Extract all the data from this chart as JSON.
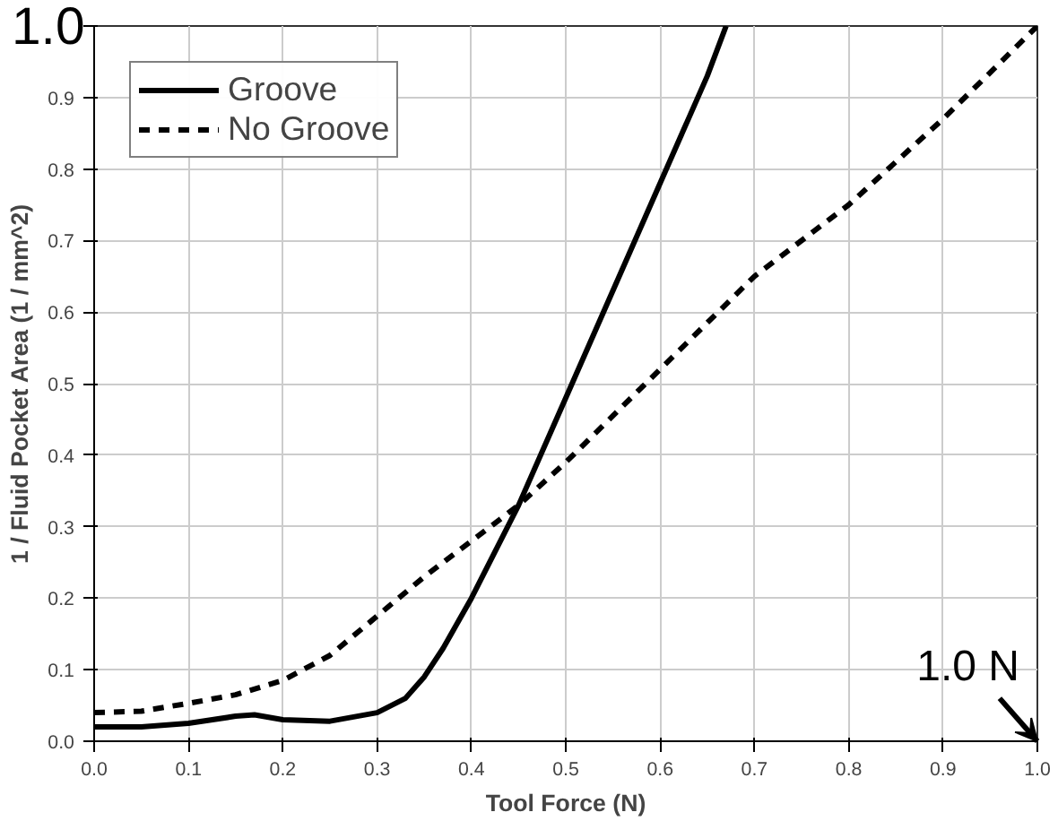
{
  "chart_data": {
    "type": "line",
    "xlabel": "Tool Force (N)",
    "ylabel": "1 / Fluid Pocket Area (1 / mm^2)",
    "xlim": [
      0,
      1.0
    ],
    "ylim": [
      0,
      1.0
    ],
    "xticks": [
      {
        "value": 0,
        "label": "0.0"
      },
      {
        "value": 0.1,
        "label": "0.1"
      },
      {
        "value": 0.2,
        "label": "0.2"
      },
      {
        "value": 0.3,
        "label": "0.3"
      },
      {
        "value": 0.4,
        "label": "0.4"
      },
      {
        "value": 0.5,
        "label": "0.5"
      },
      {
        "value": 0.6,
        "label": "0.6"
      },
      {
        "value": 0.7,
        "label": "0.7"
      },
      {
        "value": 0.8,
        "label": "0.8"
      },
      {
        "value": 0.9,
        "label": "0.9"
      },
      {
        "value": 1.0,
        "label": "1.0"
      }
    ],
    "yticks": [
      {
        "value": 0,
        "label": "0.0"
      },
      0.1,
      0.2,
      0.3,
      0.4,
      0.5,
      0.6,
      0.7,
      0.8,
      0.9,
      {
        "value": 1.0,
        "label": null
      }
    ],
    "grid": true,
    "legend": "top left",
    "series": [
      {
        "name": "Groove",
        "color": "#000000",
        "line_style": "solid",
        "x": [
          0,
          0.05,
          0.1,
          0.15,
          0.17,
          0.2,
          0.25,
          0.3,
          0.33,
          0.35,
          0.37,
          0.4,
          0.45,
          0.5,
          0.55,
          0.6,
          0.65,
          0.67
        ],
        "values": [
          0.02,
          0.02,
          0.025,
          0.035,
          0.037,
          0.03,
          0.028,
          0.04,
          0.06,
          0.09,
          0.13,
          0.2,
          0.33,
          0.48,
          0.63,
          0.78,
          0.93,
          1.0
        ]
      },
      {
        "name": "No Groove",
        "color": "#000000",
        "line_style": "dashed",
        "x": [
          0,
          0.05,
          0.1,
          0.15,
          0.2,
          0.25,
          0.3,
          0.35,
          0.4,
          0.45,
          0.5,
          0.6,
          0.7,
          0.8,
          0.9,
          1.0
        ],
        "values": [
          0.04,
          0.042,
          0.053,
          0.065,
          0.085,
          0.12,
          0.175,
          0.23,
          0.28,
          0.33,
          0.39,
          0.52,
          0.65,
          0.75,
          0.87,
          1.0
        ]
      }
    ],
    "annotations": [
      "1.0",
      "1.0 N"
    ]
  }
}
